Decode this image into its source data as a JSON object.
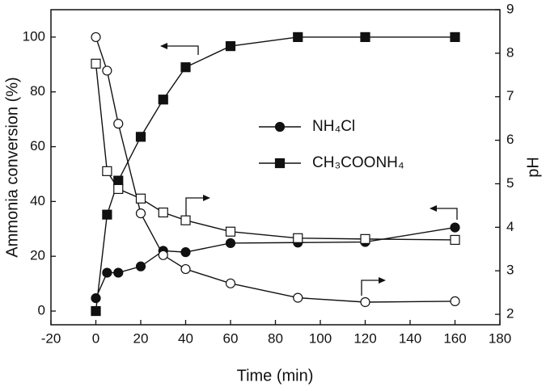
{
  "chart_data": {
    "type": "line",
    "x_label": "Time (min)",
    "y_label": "Ammonia conversion (%)",
    "y2_label": "pH",
    "xlim": [
      -20,
      180
    ],
    "xticks": [
      -20,
      0,
      20,
      40,
      60,
      80,
      100,
      120,
      140,
      160,
      180
    ],
    "ylim": [
      -5,
      110
    ],
    "yticks": [
      0,
      20,
      40,
      60,
      80,
      100
    ],
    "y2lim": [
      1.76,
      9
    ],
    "y2ticks": [
      2,
      3,
      4,
      5,
      6,
      7,
      8,
      9
    ],
    "series": [
      {
        "name": "NH₄Cl",
        "color": "#111111",
        "marker": "circle",
        "filled": true,
        "x": [
          0,
          5,
          10,
          20,
          30,
          40,
          60,
          90,
          120,
          160
        ],
        "values": [
          4.7,
          14,
          14,
          16.3,
          22,
          21.5,
          24.8,
          25,
          25.2,
          30.5
        ]
      },
      {
        "name": "CH₃COONH₄",
        "color": "#111111",
        "marker": "square",
        "filled": true,
        "x": [
          0,
          5,
          10,
          20,
          30,
          40,
          60,
          90,
          120,
          160
        ],
        "values": [
          0,
          35.2,
          47.6,
          63.6,
          77.2,
          89,
          96.7,
          100,
          100,
          100
        ]
      },
      {
        "color": "#111111",
        "marker": "circle",
        "filled": false,
        "axis": "y2",
        "x": [
          0,
          5,
          10,
          20,
          30,
          40,
          60,
          90,
          120,
          160
        ],
        "values": [
          8.37,
          7.6,
          6.38,
          4.32,
          3.36,
          3.04,
          2.71,
          2.38,
          2.28,
          2.3
        ]
      },
      {
        "color": "#111111",
        "marker": "square",
        "filled": false,
        "axis": "y2",
        "x": [
          0,
          5,
          10,
          20,
          30,
          40,
          60,
          90,
          120,
          160
        ],
        "values": [
          7.76,
          5.29,
          4.88,
          4.66,
          4.34,
          4.16,
          3.9,
          3.75,
          3.73,
          3.71
        ]
      }
    ]
  }
}
